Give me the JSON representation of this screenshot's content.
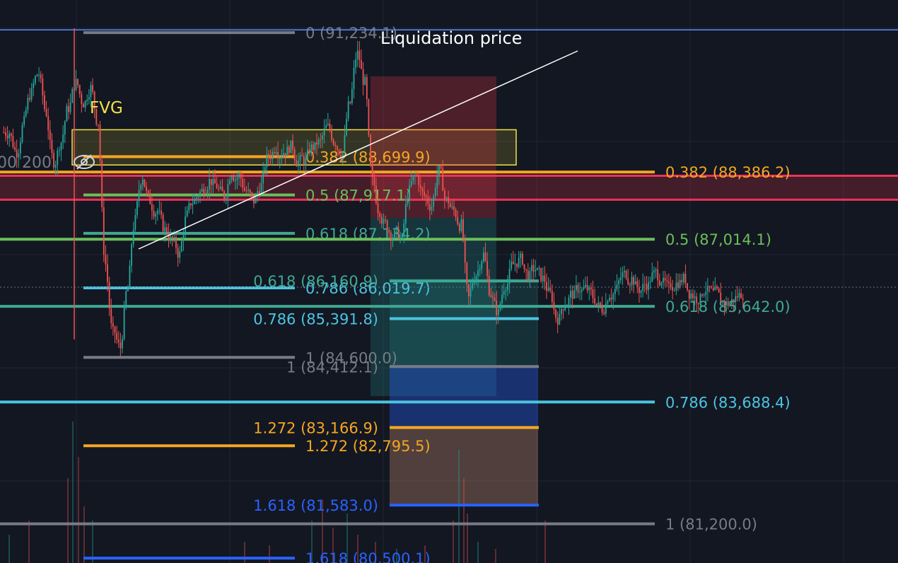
{
  "colors": {
    "background": "#131722",
    "grid": "#1f2433",
    "up": "#26a69a",
    "down": "#ef5350",
    "liq_line": "#5b8ff9",
    "fvg_fill": "rgba(255,235,59,0.14)",
    "fvg_stroke": "#f2e24a",
    "fvg_text": "#f2e24a",
    "red_zone": "rgba(242,54,69,0.22)",
    "red_line": "#e8345a",
    "gray": "#787b86",
    "orange": "#f5a623",
    "green": "#6cbf5a",
    "teal": "#3fa893",
    "cyan": "#4cc4e2",
    "blue": "#2962ff"
  },
  "labels": {
    "liquidation": "Liquidation price",
    "fvg": "FVG",
    "left_cut": "00 200"
  },
  "chart_data": {
    "type": "candlestick",
    "ylim": [
      80400,
      91900
    ],
    "grid": true,
    "horizontal_lines": [
      {
        "name": "liquidation",
        "value": 91290
      }
    ],
    "zones": [
      {
        "name": "fvg",
        "label": "FVG",
        "y_top": 89250,
        "y_bottom": 88530
      },
      {
        "name": "red-zone",
        "y_top": 88310,
        "y_bottom": 87820
      }
    ],
    "fib_a": [
      {
        "ratio": "0",
        "value": 91234.1,
        "text": "0 (91,234.1)",
        "color": "gray"
      },
      {
        "ratio": "0.382",
        "value": 88699.9,
        "text": "0.382 (88,699.9)",
        "color": "orange"
      },
      {
        "ratio": "0.5",
        "value": 87917.1,
        "text": "0.5 (87,917.1)",
        "color": "green"
      },
      {
        "ratio": "0.618",
        "value": 87134.2,
        "text": "0.618 (87,134.2)",
        "color": "teal"
      },
      {
        "ratio": "0.786",
        "value": 86019.7,
        "text": "0.786 (86,019.7)",
        "color": "cyan"
      },
      {
        "ratio": "1",
        "value": 84600.0,
        "text": "1 (84,600.0)",
        "color": "gray"
      },
      {
        "ratio": "1.272",
        "value": 82795.5,
        "text": "1.272 (82,795.5)",
        "color": "orange"
      },
      {
        "ratio": "1.618",
        "value": 80500.1,
        "text": "1.618 (80,500.1)",
        "color": "blue"
      }
    ],
    "fib_b": [
      {
        "ratio": "0.382",
        "value": 88386.2,
        "text": "0.382 (88,386.2)",
        "color": "orange"
      },
      {
        "ratio": "0.5",
        "value": 87014.1,
        "text": "0.5 (87,014.1)",
        "color": "green"
      },
      {
        "ratio": "0.618",
        "value": 85642.0,
        "text": "0.618 (85,642.0)",
        "color": "teal"
      },
      {
        "ratio": "0.786",
        "value": 83688.4,
        "text": "0.786 (83,688.4)",
        "color": "cyan"
      },
      {
        "ratio": "1",
        "value": 81200.0,
        "text": "1 (81,200.0)",
        "color": "gray"
      }
    ],
    "fib_c": [
      {
        "ratio": "0.618",
        "value": 86160.9,
        "text": "0.618 (86,160.9)",
        "color": "teal"
      },
      {
        "ratio": "0.786",
        "value": 85391.8,
        "text": "0.786 (85,391.8)",
        "color": "cyan"
      },
      {
        "ratio": "1",
        "value": 84412.1,
        "text": "1 (84,412.1)",
        "color": "gray"
      },
      {
        "ratio": "1.272",
        "value": 83166.9,
        "text": "1.272 (83,166.9)",
        "color": "orange"
      },
      {
        "ratio": "1.618",
        "value": 81583.0,
        "text": "1.618 (81,583.0)",
        "color": "blue"
      }
    ],
    "series": [
      {
        "name": "price",
        "close": [
          89200,
          88800,
          89400,
          90000,
          90400,
          89600,
          88600,
          89000,
          89700,
          90200,
          89800,
          90100,
          89400,
          86500,
          85100,
          84800,
          86000,
          87400,
          88300,
          87800,
          87600,
          87200,
          87000,
          86700,
          87500,
          87800,
          88000,
          88200,
          88100,
          87900,
          88400,
          88300,
          88000,
          87800,
          88100,
          88700,
          88900,
          88800,
          88900,
          88600,
          88600,
          88900,
          89000,
          89300,
          89000,
          88800,
          89800,
          90800,
          90200,
          88200,
          87600,
          87300,
          87100,
          87000,
          88000,
          88300,
          87900,
          87700,
          88400,
          87800,
          87600,
          87300,
          85800,
          86300,
          86700,
          85900,
          85500,
          86100,
          86500,
          86600,
          86300,
          86400,
          86200,
          85900,
          85400,
          85700,
          85900,
          86000,
          86000,
          85800,
          85600,
          85900,
          86000,
          86300,
          86200,
          86000,
          86100,
          86300,
          86200,
          86000,
          86100,
          86200,
          85900,
          85800,
          86000,
          85900,
          85800,
          85700,
          85800,
          85900
        ]
      }
    ]
  }
}
